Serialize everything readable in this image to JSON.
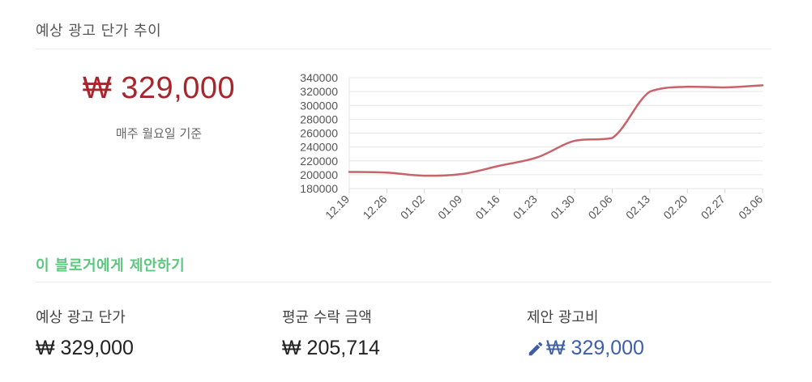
{
  "header": {
    "title": "예상 광고 단가 추이"
  },
  "estimate": {
    "price": "₩ 329,000",
    "basis": "매주 월요일 기준"
  },
  "colors": {
    "line": "#c9636a",
    "price_red": "#a8262b",
    "suggest_green": "#5ec77f",
    "proposal_blue": "#3f5ea8"
  },
  "chart_data": {
    "type": "line",
    "categories": [
      "12.19",
      "12.26",
      "01.02",
      "01.09",
      "01.16",
      "01.23",
      "01.30",
      "02.06",
      "02.13",
      "02.20",
      "02.27",
      "03.06"
    ],
    "values": [
      204000,
      203000,
      198500,
      201000,
      213000,
      225000,
      249000,
      253000,
      320000,
      327000,
      326000,
      329000
    ],
    "yticks": [
      180000,
      200000,
      220000,
      240000,
      260000,
      280000,
      300000,
      320000,
      340000
    ],
    "ylim": [
      180000,
      340000
    ],
    "grid": true,
    "title": "",
    "xlabel": "",
    "ylabel": ""
  },
  "suggest": {
    "title": "이 블로거에게 제안하기"
  },
  "stats": {
    "expected": {
      "label": "예상 광고 단가",
      "value": "₩ 329,000"
    },
    "average": {
      "label": "평균 수락 금액",
      "value": "₩ 205,714"
    },
    "proposal": {
      "label": "제안 광고비",
      "value": "₩ 329,000",
      "icon": "pencil-icon"
    }
  }
}
